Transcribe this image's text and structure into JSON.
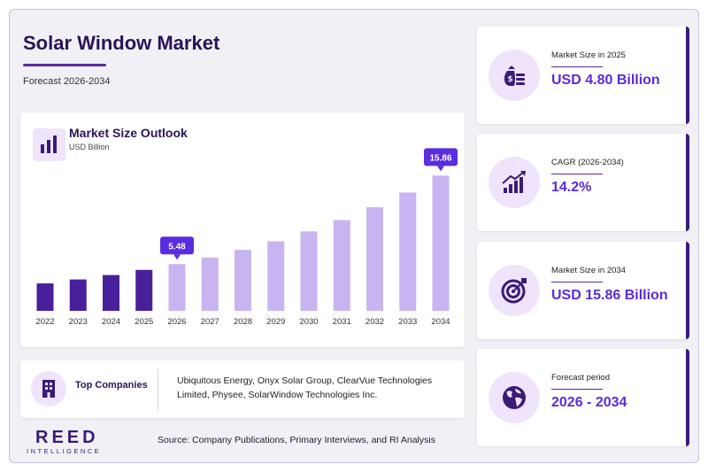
{
  "header": {
    "title": "Solar Window Market",
    "subtitle": "Forecast 2026-2034"
  },
  "chart_card": {
    "title": "Market Size Outlook",
    "unit": "USD Billion"
  },
  "chart_data": {
    "type": "bar",
    "title": "Market Size Outlook",
    "ylabel": "USD Billion",
    "categories": [
      "2022",
      "2023",
      "2024",
      "2025",
      "2026",
      "2027",
      "2028",
      "2029",
      "2030",
      "2031",
      "2032",
      "2033",
      "2034"
    ],
    "values": [
      3.22,
      3.68,
      4.2,
      4.8,
      5.48,
      6.26,
      7.15,
      8.16,
      9.32,
      10.64,
      12.15,
      13.88,
      15.86
    ],
    "historical_until": "2025",
    "callouts": [
      {
        "category": "2026",
        "label": "5.48"
      },
      {
        "category": "2034",
        "label": "15.86"
      }
    ],
    "ylim": [
      0,
      16
    ],
    "colors": {
      "historical": "#4a1f9c",
      "forecast": "#c7b4f0",
      "callout": "#5a2ce0"
    }
  },
  "companies": {
    "label": "Top Companies",
    "text": "Ubiquitous Energy, Onyx Solar Group, ClearVue Technologies Limited, Physee, SolarWindow Technologies Inc."
  },
  "logo": {
    "main": "REED",
    "sub": "INTELLIGENCE"
  },
  "source": "Source: Company Publications, Primary Interviews, and RI Analysis",
  "stats": [
    {
      "label": "Market Size in 2025",
      "value": "USD 4.80 Billion",
      "icon": "money-bag-icon"
    },
    {
      "label": "CAGR (2026-2034)",
      "value": "14.2%",
      "icon": "growth-chart-icon"
    },
    {
      "label": "Market Size in 2034",
      "value": "USD 15.86 Billion",
      "icon": "target-icon"
    },
    {
      "label": "Forecast period",
      "value": "2026 - 2034",
      "icon": "globe-icon"
    }
  ],
  "colors": {
    "brand": "#3a1b78",
    "accent": "#5b2bd6",
    "icon_bg": "#efe4fb"
  }
}
